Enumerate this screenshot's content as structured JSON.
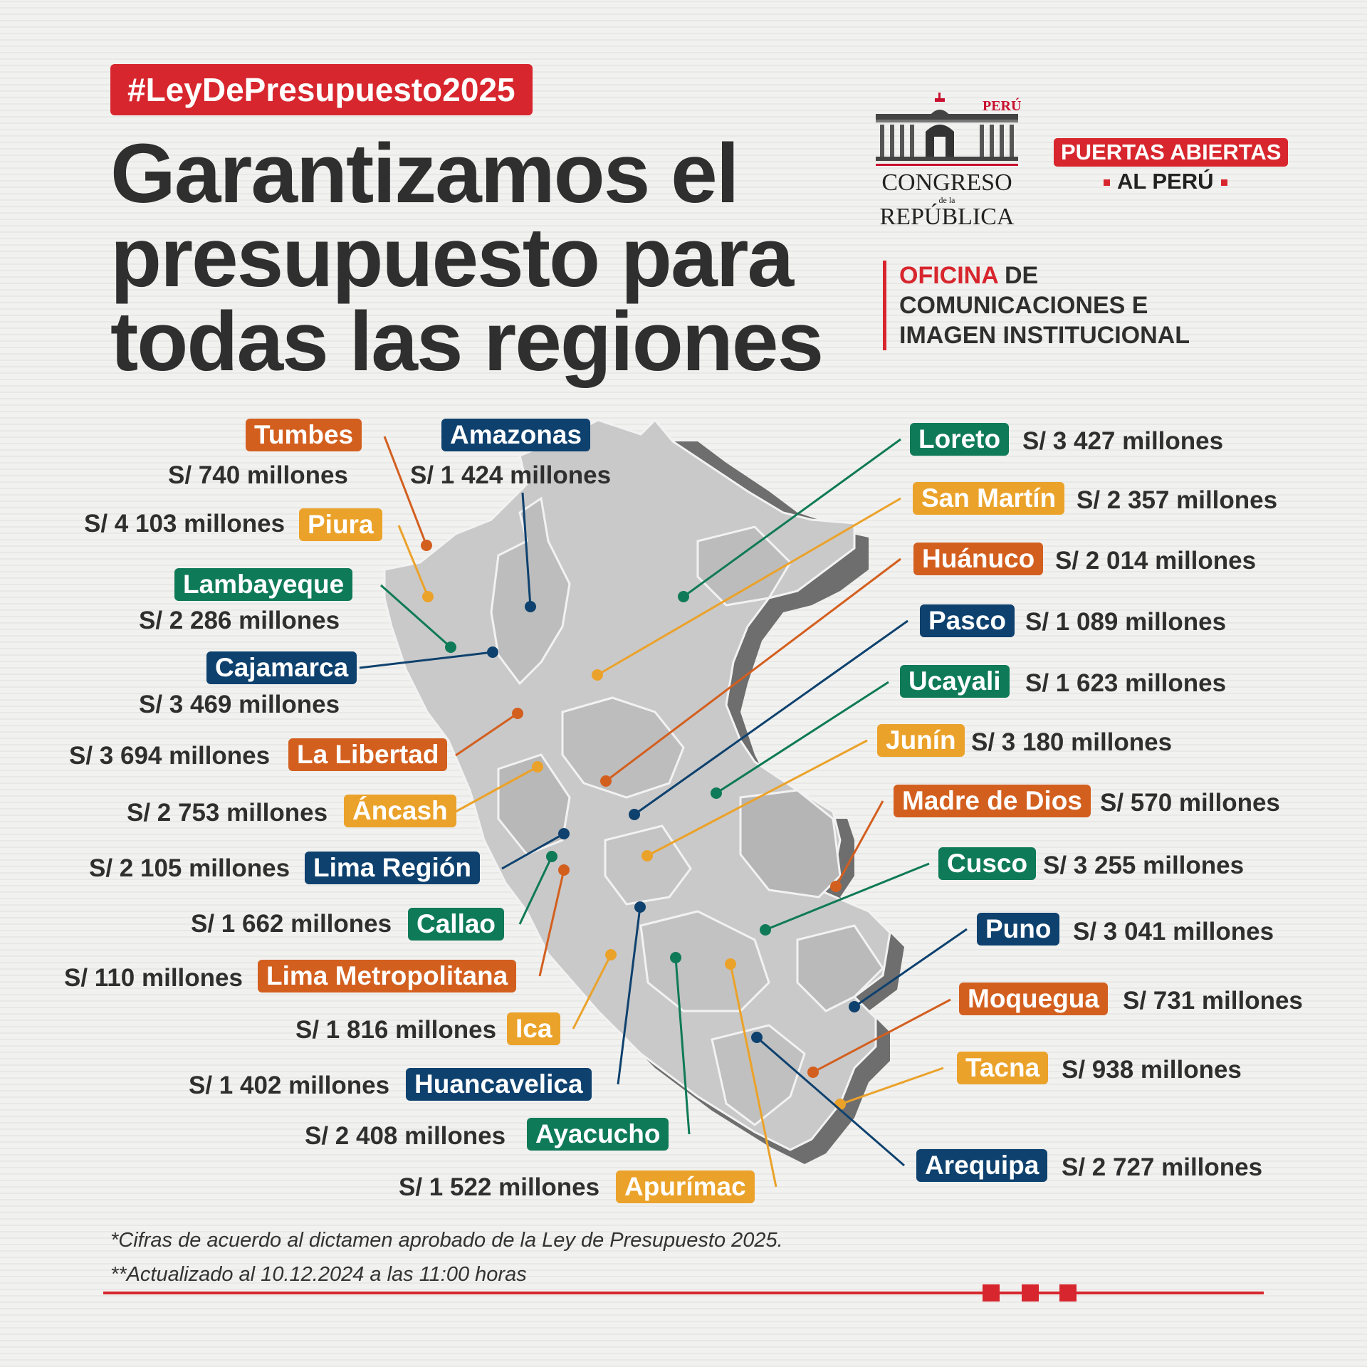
{
  "hashtag": "#LeyDePresupuesto2025",
  "headline": [
    "Garantizamos el",
    "presupuesto para",
    "todas las regiones"
  ],
  "logo": {
    "country": "PERÚ",
    "line1": "CONGRESO",
    "line2": "de la",
    "line3": "REPÚBLICA"
  },
  "campaign": {
    "line1": "PUERTAS ABIERTAS",
    "line2": "AL PERÚ"
  },
  "office": {
    "highlight": "OFICINA",
    "rest1": " DE",
    "line2": "COMUNICACIONES E",
    "line3": "IMAGEN INSTITUCIONAL"
  },
  "colors": {
    "orange": "#d35f1f",
    "yellow": "#eba22a",
    "green": "#0f7a57",
    "blue": "#0e416e",
    "red": "#d7262d"
  },
  "regions": [
    {
      "name": "Tumbes",
      "amount": "S/ 740 millones",
      "color": "orange"
    },
    {
      "name": "Amazonas",
      "amount": "S/ 1 424 millones",
      "color": "blue"
    },
    {
      "name": "Piura",
      "amount": "S/ 4 103 millones",
      "color": "yellow"
    },
    {
      "name": "Lambayeque",
      "amount": "S/ 2 286 millones",
      "color": "green"
    },
    {
      "name": "Cajamarca",
      "amount": "S/ 3 469 millones",
      "color": "blue"
    },
    {
      "name": "La Libertad",
      "amount": "S/ 3 694 millones",
      "color": "orange"
    },
    {
      "name": "Áncash",
      "amount": "S/ 2 753 millones",
      "color": "yellow"
    },
    {
      "name": "Lima Región",
      "amount": "S/ 2 105 millones",
      "color": "blue"
    },
    {
      "name": "Callao",
      "amount": "S/ 1 662 millones",
      "color": "green"
    },
    {
      "name": "Lima Metropolitana",
      "amount": "S/ 110  millones",
      "color": "orange"
    },
    {
      "name": "Ica",
      "amount": "S/ 1 816 millones",
      "color": "yellow"
    },
    {
      "name": "Huancavelica",
      "amount": "S/ 1 402 millones",
      "color": "blue"
    },
    {
      "name": "Ayacucho",
      "amount": "S/ 2 408 millones",
      "color": "green"
    },
    {
      "name": "Apurímac",
      "amount": "S/ 1 522 millones",
      "color": "yellow"
    },
    {
      "name": "Loreto",
      "amount": "S/ 3 427 millones",
      "color": "green"
    },
    {
      "name": "San Martín",
      "amount": "S/ 2 357 millones",
      "color": "yellow"
    },
    {
      "name": "Huánuco",
      "amount": "S/ 2 014 millones",
      "color": "orange"
    },
    {
      "name": "Pasco",
      "amount": "S/ 1 089 millones",
      "color": "blue"
    },
    {
      "name": "Ucayali",
      "amount": "S/ 1 623 millones",
      "color": "green"
    },
    {
      "name": "Junín",
      "amount": "S/ 3 180 millones",
      "color": "yellow"
    },
    {
      "name": "Madre de Dios",
      "amount": "S/ 570 millones",
      "color": "orange"
    },
    {
      "name": "Cusco",
      "amount": "S/ 3 255 millones",
      "color": "green"
    },
    {
      "name": "Puno",
      "amount": "S/ 3 041 millones",
      "color": "blue"
    },
    {
      "name": "Moquegua",
      "amount": "S/  731 millones",
      "color": "orange"
    },
    {
      "name": "Tacna",
      "amount": "S/ 938 millones",
      "color": "yellow"
    },
    {
      "name": "Arequipa",
      "amount": "S/ 2 727 millones",
      "color": "blue"
    }
  ],
  "footnote1": "*Cifras de acuerdo al dictamen aprobado de la Ley de Presupuesto 2025.",
  "footnote2": "**Actualizado al 10.12.2024 a las 11:00 horas"
}
